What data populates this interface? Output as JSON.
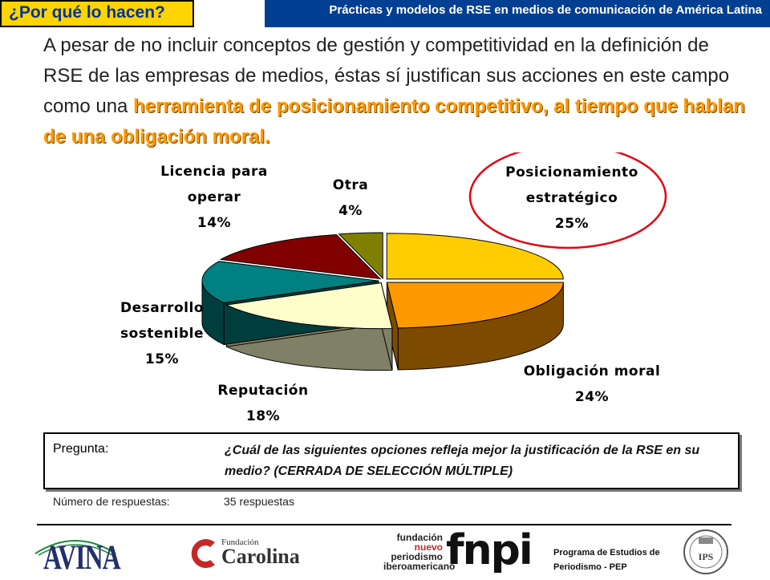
{
  "header": {
    "tag": "¿Por qué lo hacen?",
    "banner": "Prácticas y modelos de RSE en medios de comunicación de América Latina"
  },
  "intro": {
    "plain": "A pesar de no incluir conceptos de gestión y competitividad en la definición de RSE de las empresas de medios, éstas sí justifican sus acciones en este campo como una ",
    "highlight": "herramienta de posicionamiento competitivo, al tiempo que hablan de una obligación moral."
  },
  "chart_data": {
    "type": "pie",
    "title": "",
    "style": "3d-exploded",
    "unit": "%",
    "slices": [
      {
        "label": [
          "Posicionamiento",
          "estratégico"
        ],
        "value": 25,
        "pct_label": "25%",
        "top_color": "#ffcc00",
        "side_color": "#8c7000",
        "highlighted": true
      },
      {
        "label": [
          "Obligación moral"
        ],
        "value": 24,
        "pct_label": "24%",
        "top_color": "#ff9900",
        "side_color": "#7d4b00",
        "highlighted": false
      },
      {
        "label": [
          "Reputación"
        ],
        "value": 18,
        "pct_label": "18%",
        "top_color": "#ffffcc",
        "side_color": "#808066",
        "highlighted": false
      },
      {
        "label": [
          "Desarrollo",
          "sostenible"
        ],
        "value": 15,
        "pct_label": "15%",
        "top_color": "#008080",
        "side_color": "#003d3d",
        "highlighted": false
      },
      {
        "label": [
          "Licencia para",
          "operar"
        ],
        "value": 14,
        "pct_label": "14%",
        "top_color": "#800000",
        "side_color": "#3d0000",
        "highlighted": false
      },
      {
        "label": [
          "Otra"
        ],
        "value": 4,
        "pct_label": "4%",
        "top_color": "#808000",
        "side_color": "#3d3d00",
        "highlighted": false
      }
    ],
    "highlight_ring_color": "#e30613"
  },
  "question": {
    "label": "Pregunta:",
    "text": "¿Cuál de las siguientes opciones refleja mejor la justificación de la RSE en su medio? (CERRADA DE SELECCIÓN MÚLTIPLE)"
  },
  "responses": {
    "label": "Número de respuestas:",
    "value": "35 respuestas"
  },
  "footer": {
    "avina": "AVINA",
    "carolina_small": "Fundación",
    "carolina_big": "Carolina",
    "fnpi_words": [
      "fundación",
      "nuevo",
      "periodismo",
      "iberoamericano"
    ],
    "fnpi_mark": "fnpi",
    "pep": "Programa de Estudios de Periodismo - PEP",
    "seal_text": "IPS"
  },
  "colors": {
    "tag_bg": "#ffd400",
    "banner_bg": "#003f91",
    "highlight_text": "#ff9900"
  }
}
